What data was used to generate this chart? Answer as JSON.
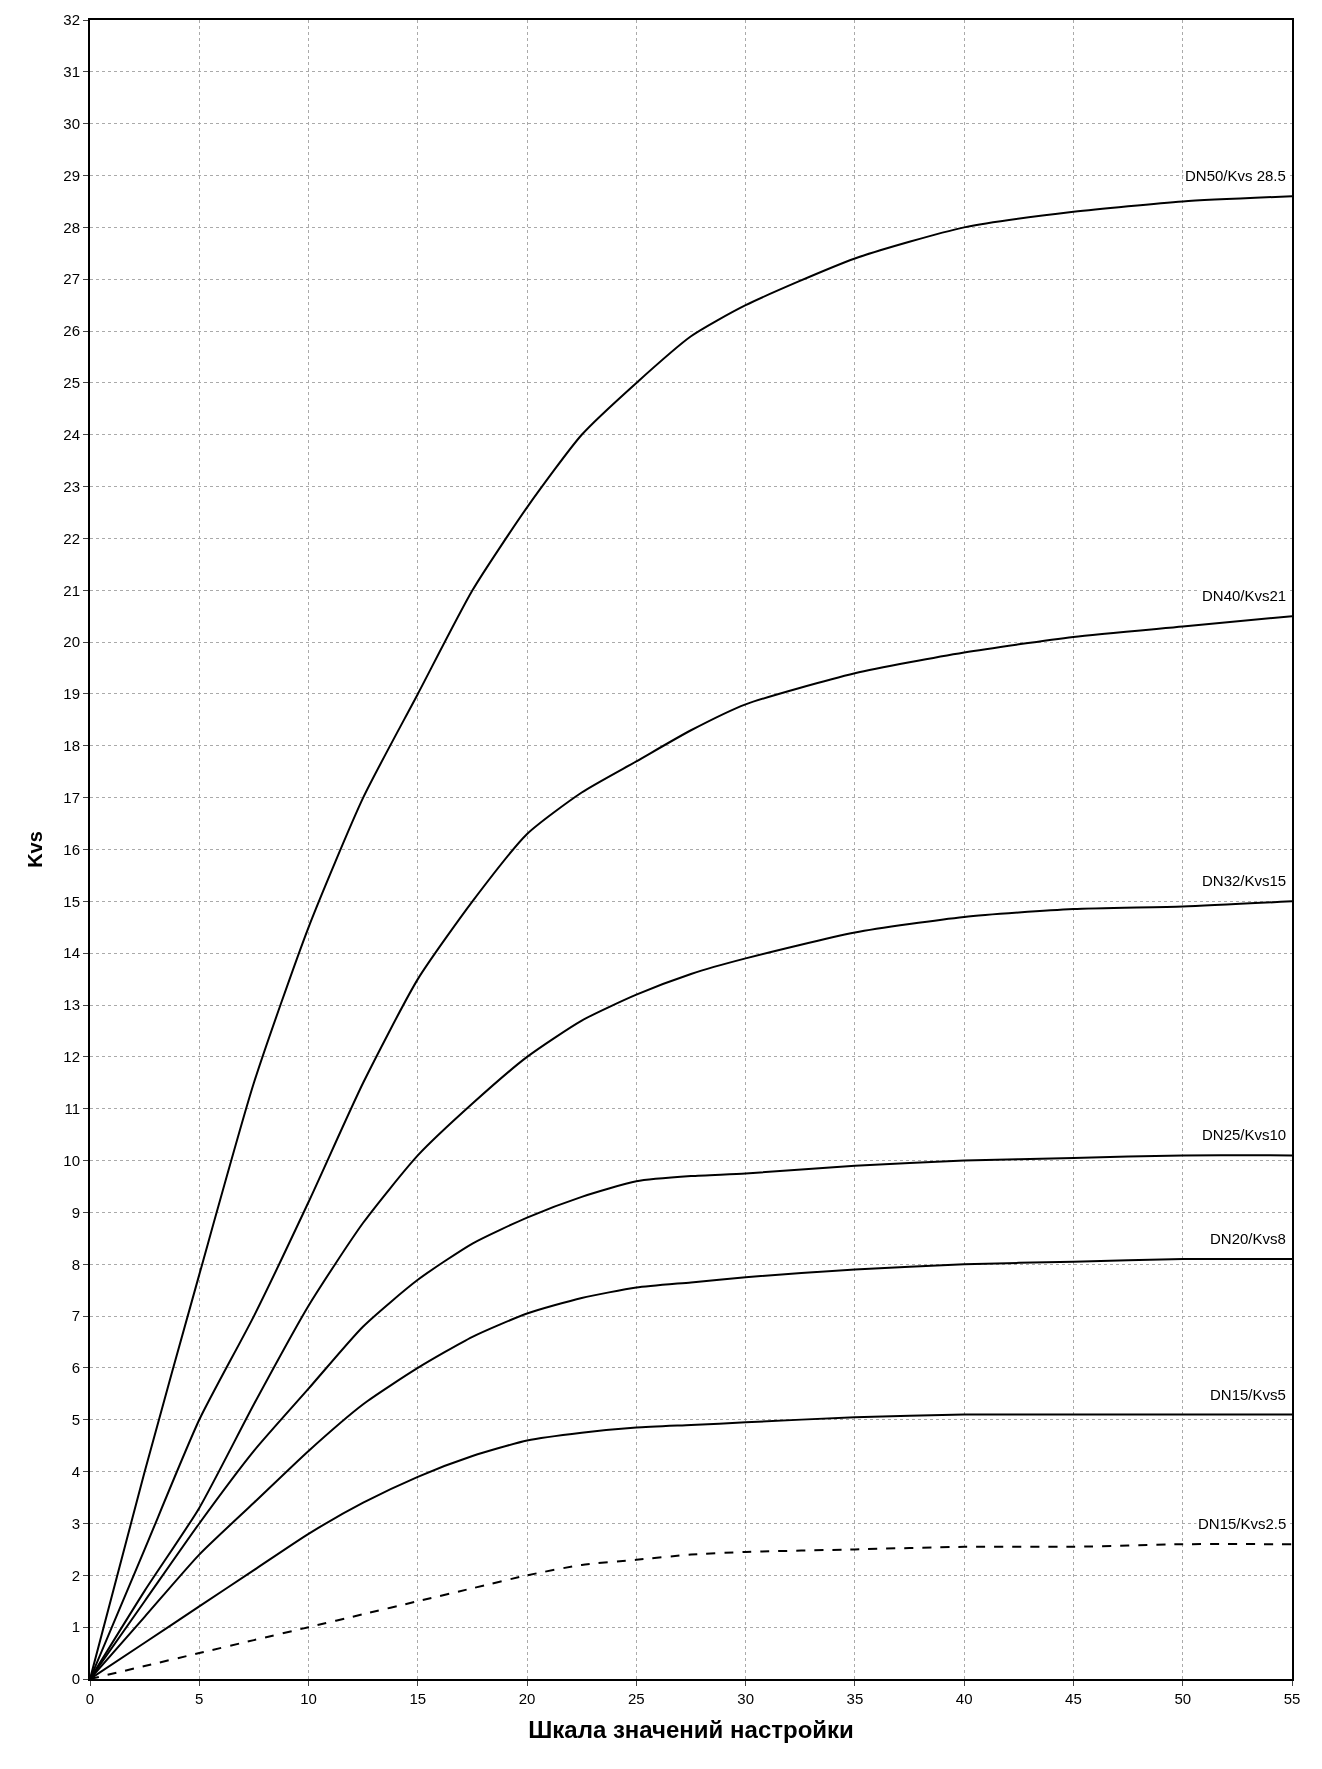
{
  "chart_data": {
    "type": "line",
    "xlabel": "Шкала значений настройки",
    "ylabel": "Kvs",
    "xlim": [
      0,
      55
    ],
    "ylim": [
      0,
      32
    ],
    "xticks": [
      0,
      5,
      10,
      15,
      20,
      25,
      30,
      35,
      40,
      45,
      50,
      55
    ],
    "yticks": [
      0,
      1,
      2,
      3,
      4,
      5,
      6,
      7,
      8,
      9,
      10,
      11,
      12,
      13,
      14,
      15,
      16,
      17,
      18,
      19,
      20,
      21,
      22,
      23,
      24,
      25,
      26,
      27,
      28,
      29,
      30,
      31,
      32
    ],
    "grid": true,
    "legend": false,
    "marker": "none",
    "x": [
      0,
      2.5,
      5,
      7.5,
      10,
      12.5,
      15,
      17.5,
      20,
      22.5,
      25,
      27.5,
      30,
      35,
      40,
      45,
      50,
      55
    ],
    "series": [
      {
        "name": "DN50/Kvs 28.5",
        "color": "#000000",
        "line_style": "solid",
        "values": [
          0,
          4,
          7.8,
          11.5,
          14.5,
          17,
          19,
          21,
          22.6,
          24,
          25,
          25.9,
          26.5,
          27.4,
          28,
          28.3,
          28.5,
          28.6
        ]
      },
      {
        "name": "DN40/Kvs21",
        "color": "#000000",
        "line_style": "solid",
        "values": [
          0,
          2.5,
          5,
          7,
          9.2,
          11.5,
          13.5,
          15,
          16.3,
          17.1,
          17.7,
          18.3,
          18.8,
          19.4,
          19.8,
          20.1,
          20.3,
          20.5
        ]
      },
      {
        "name": "DN32/Kvs15",
        "color": "#000000",
        "line_style": "solid",
        "values": [
          0,
          1.7,
          3.3,
          5.3,
          7.2,
          8.8,
          10.1,
          11.1,
          12,
          12.7,
          13.2,
          13.6,
          13.9,
          14.4,
          14.7,
          14.85,
          14.9,
          15
        ]
      },
      {
        "name": "DN25/Kvs10",
        "color": "#000000",
        "line_style": "solid",
        "values": [
          0,
          1.5,
          3,
          4.4,
          5.6,
          6.8,
          7.7,
          8.4,
          8.9,
          9.3,
          9.6,
          9.7,
          9.75,
          9.9,
          10,
          10.05,
          10.1,
          10.1
        ]
      },
      {
        "name": "DN20/Kvs8",
        "color": "#000000",
        "line_style": "solid",
        "values": [
          0,
          1.2,
          2.4,
          3.4,
          4.4,
          5.3,
          6,
          6.6,
          7.05,
          7.35,
          7.55,
          7.65,
          7.75,
          7.9,
          8,
          8.05,
          8.1,
          8.1
        ]
      },
      {
        "name": "DN15/Kvs5",
        "color": "#000000",
        "line_style": "solid",
        "values": [
          0,
          0.7,
          1.4,
          2.1,
          2.8,
          3.4,
          3.9,
          4.3,
          4.6,
          4.75,
          4.85,
          4.9,
          4.95,
          5.05,
          5.1,
          5.1,
          5.1,
          5.1
        ]
      },
      {
        "name": "DN15/Kvs2.5",
        "color": "#000000",
        "line_style": "dashed",
        "values": [
          0,
          0.25,
          0.5,
          0.75,
          1,
          1.25,
          1.5,
          1.75,
          2,
          2.2,
          2.3,
          2.4,
          2.45,
          2.5,
          2.55,
          2.55,
          2.6,
          2.6
        ]
      }
    ]
  }
}
